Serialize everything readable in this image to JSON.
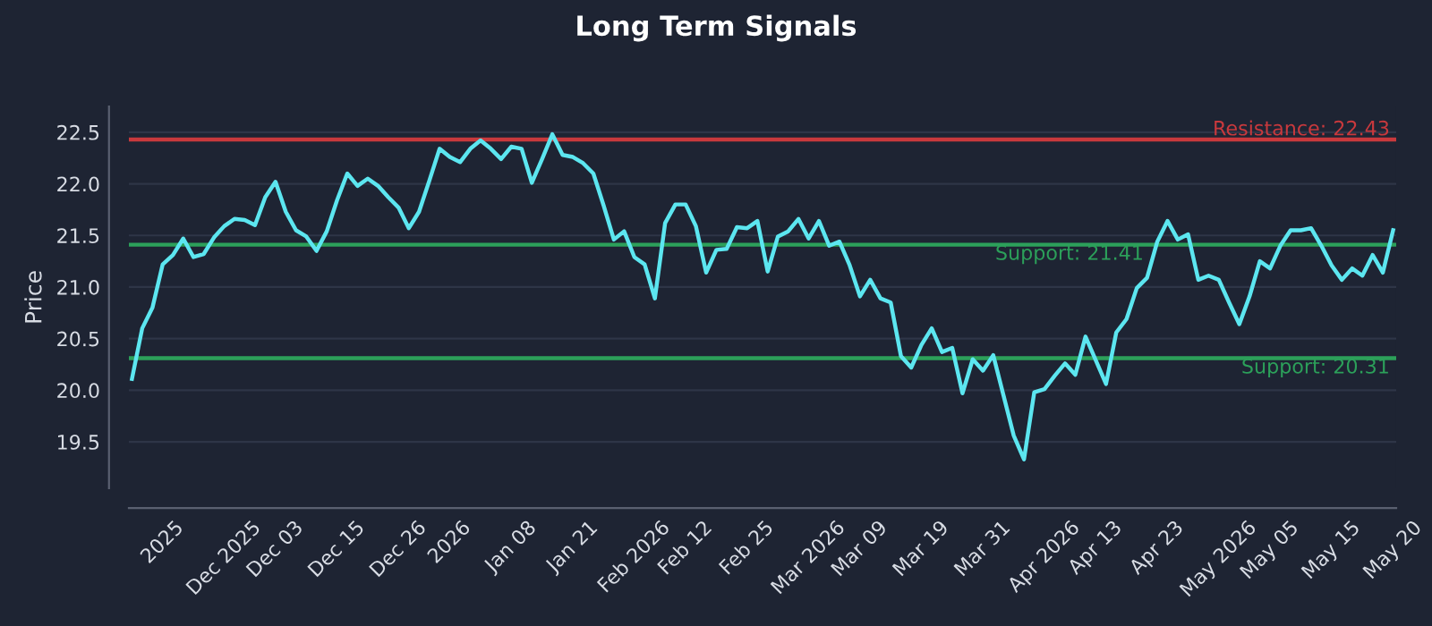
{
  "chart_data": {
    "type": "line",
    "title": "Long Term Signals",
    "ylabel": "Price",
    "categories": [
      null,
      null,
      null,
      "2025",
      null,
      null,
      null,
      null,
      null,
      "Dec 2025",
      null,
      null,
      null,
      null,
      "Dec 03",
      null,
      null,
      null,
      null,
      null,
      "Dec 15",
      null,
      null,
      null,
      null,
      null,
      "Dec 26",
      null,
      null,
      null,
      null,
      "2026",
      null,
      null,
      null,
      null,
      null,
      "Jan 08",
      null,
      null,
      null,
      null,
      null,
      "Jan 21",
      null,
      null,
      null,
      null,
      null,
      "Feb 2026",
      null,
      null,
      null,
      null,
      "Feb 12",
      null,
      null,
      null,
      null,
      null,
      "Feb 25",
      null,
      null,
      null,
      null,
      null,
      "Mar 2026",
      null,
      null,
      null,
      null,
      "Mar 09",
      null,
      null,
      null,
      null,
      null,
      "Mar 19",
      null,
      null,
      null,
      null,
      null,
      "Mar 31",
      null,
      null,
      null,
      null,
      null,
      "Apr 2026",
      null,
      null,
      null,
      null,
      "Apr 13",
      null,
      null,
      null,
      null,
      null,
      "Apr 23",
      null,
      null,
      null,
      null,
      null,
      "May 2026",
      null,
      null,
      null,
      null,
      "May 05",
      null,
      null,
      null,
      null,
      null,
      "May 15",
      null,
      null,
      null,
      null,
      null,
      "May 20"
    ],
    "series": [
      {
        "color": "#5ce6f0",
        "values": [
          20.11,
          20.6,
          20.8,
          21.22,
          21.31,
          21.47,
          21.29,
          21.32,
          21.48,
          21.59,
          21.66,
          21.65,
          21.6,
          21.87,
          22.02,
          21.73,
          21.55,
          21.49,
          21.35,
          21.54,
          21.84,
          22.1,
          21.98,
          22.05,
          21.98,
          21.87,
          21.77,
          21.57,
          21.73,
          22.03,
          22.34,
          22.26,
          22.21,
          22.34,
          22.42,
          22.34,
          22.24,
          22.36,
          22.34,
          22.01,
          22.24,
          22.48,
          22.28,
          22.26,
          22.2,
          22.1,
          21.79,
          21.46,
          21.54,
          21.29,
          21.22,
          20.89,
          21.62,
          21.8,
          21.8,
          21.59,
          21.14,
          21.36,
          21.37,
          21.58,
          21.57,
          21.64,
          21.15,
          21.49,
          21.54,
          21.66,
          21.47,
          21.64,
          21.4,
          21.44,
          21.21,
          20.91,
          21.07,
          20.89,
          20.85,
          20.33,
          20.22,
          20.44,
          20.6,
          20.37,
          20.41,
          19.97,
          20.3,
          20.19,
          20.34,
          19.95,
          19.56,
          19.33,
          19.98,
          20.01,
          20.14,
          20.26,
          20.15,
          20.52,
          20.29,
          20.06,
          20.56,
          20.69,
          20.99,
          21.09,
          21.44,
          21.64,
          21.46,
          21.51,
          21.07,
          21.11,
          21.07,
          20.85,
          20.64,
          20.91,
          21.25,
          21.18,
          21.4,
          21.55,
          21.55,
          21.57,
          21.4,
          21.21,
          21.07,
          21.18,
          21.11,
          21.31,
          21.14,
          21.55
        ]
      }
    ],
    "ylim": [
      19.05,
      22.75
    ],
    "yticks": [
      19.5,
      {
        "value": 20,
        "label": "20.0"
      },
      20.5,
      {
        "value": 21,
        "label": "21.0"
      },
      21.5,
      {
        "value": 22,
        "label": "22.0"
      },
      22.5
    ],
    "ref_lines": [
      {
        "axis": "y",
        "value": 22.43,
        "label": "Resistance: 22.43",
        "color": "#c8393d"
      },
      {
        "axis": "y",
        "value": 21.41,
        "label": "Support: 21.41",
        "color": "#2ca05a"
      },
      {
        "axis": "y",
        "value": 20.31,
        "label": "Support: 20.31",
        "color": "#2ca05a"
      }
    ],
    "grid": "y",
    "marker": "none",
    "line_style": "solid"
  }
}
